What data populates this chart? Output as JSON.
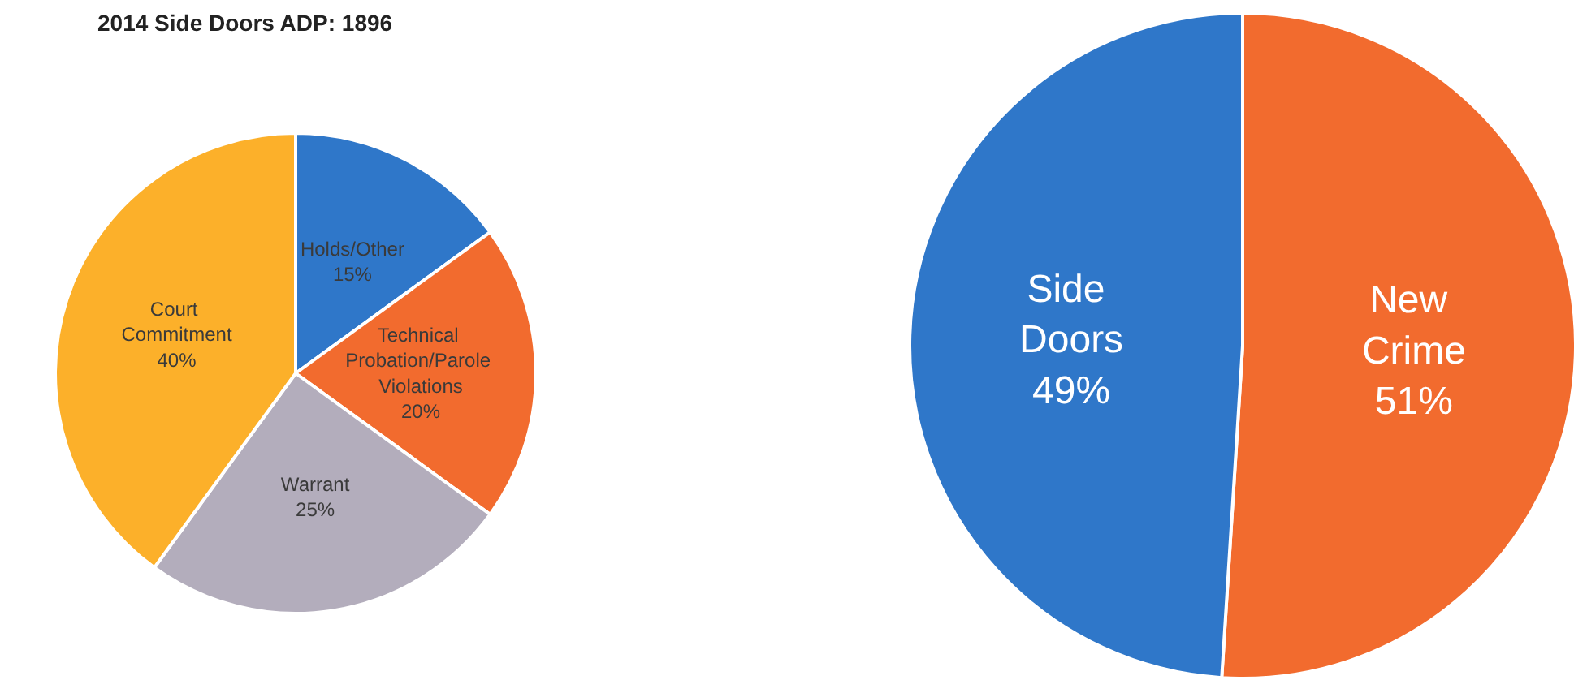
{
  "chart_data": [
    {
      "type": "pie",
      "title": "2014 Side Doors ADP: 1896",
      "categories": [
        "Holds/Other",
        "Technical Probation/Parole Violations",
        "Warrant",
        "Court Commitment"
      ],
      "values": [
        15,
        20,
        25,
        40
      ],
      "colors": [
        "#2f77c9",
        "#f26b2e",
        "#b3adbc",
        "#fcb02a"
      ],
      "value_labels": [
        "15%",
        "20%",
        "25%",
        "40%"
      ]
    },
    {
      "type": "pie",
      "categories": [
        "New Crime",
        "Side Doors"
      ],
      "values": [
        51,
        49
      ],
      "colors": [
        "#f26b2e",
        "#2f77c9"
      ],
      "value_labels": [
        "51%",
        "49%"
      ]
    }
  ]
}
